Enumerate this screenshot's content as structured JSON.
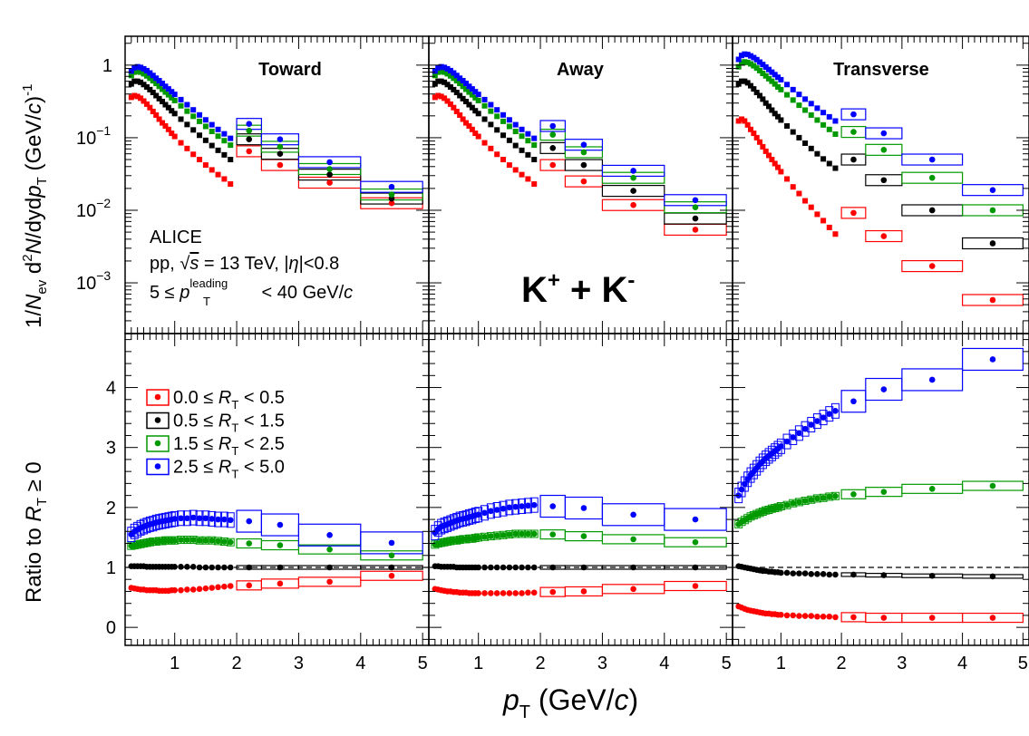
{
  "chart_data": {
    "type": "scatter",
    "experiment": "ALICE",
    "system_prefix": "pp, ",
    "sqrt_s_value": " = 13 TeV, |",
    "eta_sym": "η",
    "eta_cut": "|<0.8",
    "leading_prefix": "5 ≤ ",
    "leading_p": "p",
    "leading_sup": "leading",
    "leading_sub": "T",
    "leading_suffix": " < 40 GeV/",
    "c_sym": "c",
    "particle_label_a": "K",
    "particle_sup_a": "+",
    "particle_plus": " + K",
    "particle_sup_b": "-",
    "regions": [
      "Toward",
      "Away",
      "Transverse"
    ],
    "xlabel_p": "p",
    "xlabel_sub": "T",
    "xlabel_rest": " (GeV/",
    "xlabel_c": "c",
    "xlabel_close": ")",
    "ylabel_top_pre": "1/",
    "ylabel_top_N": "N",
    "ylabel_top_ev": "ev",
    "ylabel_top_d2": " d",
    "ylabel_top_2": "2",
    "ylabel_top_N2": "N",
    "ylabel_top_dy": "/dyd",
    "ylabel_top_p": "p",
    "ylabel_top_T": "T",
    "ylabel_top_units": " (GeV/",
    "ylabel_top_c": "c",
    "ylabel_top_exp": ")",
    "ylabel_top_m1": "-1",
    "ylabel_bot_pre": "Ratio to ",
    "ylabel_bot_R": "R",
    "ylabel_bot_T": "T",
    "ylabel_bot_post": " ≥ 0",
    "x_ticks": [
      "1",
      "2",
      "3",
      "4",
      "5"
    ],
    "xlim": [
      0.2,
      5.1
    ],
    "top_ylim": [
      0.0002,
      2.5
    ],
    "top_yscale": "log",
    "top_ytick_labels": [
      {
        "base": "1",
        "exp": ""
      },
      {
        "base": "10",
        "exp": "−1"
      },
      {
        "base": "10",
        "exp": "−2"
      },
      {
        "base": "10",
        "exp": "−3"
      }
    ],
    "bottom_ylim": [
      -0.3,
      4.9
    ],
    "bottom_yticks": [
      "0",
      "1",
      "2",
      "3",
      "4"
    ],
    "ratio_reference_line": 1,
    "legend_placement": "upper-left of bottom-left panel",
    "series": [
      {
        "name_pre": "0.0 ≤ ",
        "name_R": "R",
        "name_T": "T",
        "name_post": " < 0.5",
        "color": "#ff0000"
      },
      {
        "name_pre": "0.5 ≤ ",
        "name_R": "R",
        "name_T": "T",
        "name_post": " < 1.5",
        "color": "#000000"
      },
      {
        "name_pre": "1.5 ≤ ",
        "name_R": "R",
        "name_T": "T",
        "name_post": " < 2.5",
        "color": "#009900"
      },
      {
        "name_pre": "2.5 ≤ ",
        "name_R": "R",
        "name_T": "T",
        "name_post": " < 5.0",
        "color": "#0000ff"
      }
    ],
    "fine_pt": [
      0.3,
      0.35,
      0.4,
      0.45,
      0.5,
      0.55,
      0.6,
      0.65,
      0.7,
      0.75,
      0.8,
      0.85,
      0.9,
      0.95,
      1.0,
      1.1,
      1.2,
      1.3,
      1.4,
      1.5,
      1.6,
      1.7,
      1.8,
      1.9
    ],
    "coarse_pt": [
      2.2,
      2.7,
      3.5,
      4.5
    ],
    "coarse_halfwidth": [
      0.2,
      0.3,
      0.5,
      0.5
    ],
    "spectra": {
      "Toward": {
        "fine": [
          [
            0.36,
            0.38,
            0.37,
            0.35,
            0.32,
            0.29,
            0.26,
            0.23,
            0.205,
            0.18,
            0.16,
            0.145,
            0.13,
            0.115,
            0.104,
            0.085,
            0.071,
            0.059,
            0.05,
            0.042,
            0.036,
            0.031,
            0.027,
            0.023
          ],
          [
            0.55,
            0.6,
            0.6,
            0.58,
            0.54,
            0.5,
            0.46,
            0.42,
            0.38,
            0.345,
            0.315,
            0.285,
            0.26,
            0.235,
            0.215,
            0.18,
            0.152,
            0.128,
            0.108,
            0.092,
            0.078,
            0.067,
            0.058,
            0.05
          ],
          [
            0.72,
            0.8,
            0.82,
            0.8,
            0.76,
            0.71,
            0.66,
            0.61,
            0.56,
            0.51,
            0.465,
            0.425,
            0.39,
            0.355,
            0.325,
            0.275,
            0.232,
            0.197,
            0.168,
            0.143,
            0.122,
            0.105,
            0.091,
            0.079
          ],
          [
            0.83,
            0.92,
            0.95,
            0.93,
            0.89,
            0.84,
            0.78,
            0.72,
            0.66,
            0.61,
            0.56,
            0.51,
            0.47,
            0.43,
            0.395,
            0.335,
            0.285,
            0.242,
            0.206,
            0.176,
            0.151,
            0.13,
            0.113,
            0.098
          ]
        ],
        "coarse": [
          [
            0.065,
            0.042,
            0.024,
            0.0125
          ],
          [
            0.095,
            0.06,
            0.031,
            0.0145
          ],
          [
            0.125,
            0.075,
            0.037,
            0.0165
          ],
          [
            0.155,
            0.095,
            0.046,
            0.021
          ]
        ]
      },
      "Away": {
        "fine": [
          [
            0.36,
            0.38,
            0.37,
            0.35,
            0.32,
            0.29,
            0.26,
            0.23,
            0.205,
            0.18,
            0.16,
            0.145,
            0.13,
            0.115,
            0.104,
            0.085,
            0.071,
            0.059,
            0.05,
            0.042,
            0.036,
            0.031,
            0.027,
            0.023
          ],
          [
            0.55,
            0.6,
            0.6,
            0.58,
            0.54,
            0.5,
            0.46,
            0.42,
            0.38,
            0.345,
            0.315,
            0.285,
            0.26,
            0.235,
            0.215,
            0.18,
            0.152,
            0.128,
            0.108,
            0.092,
            0.078,
            0.067,
            0.058,
            0.05
          ],
          [
            0.72,
            0.8,
            0.82,
            0.8,
            0.76,
            0.71,
            0.66,
            0.61,
            0.56,
            0.51,
            0.465,
            0.425,
            0.39,
            0.355,
            0.325,
            0.275,
            0.232,
            0.197,
            0.168,
            0.143,
            0.122,
            0.105,
            0.091,
            0.079
          ],
          [
            0.83,
            0.92,
            0.95,
            0.93,
            0.89,
            0.84,
            0.78,
            0.72,
            0.66,
            0.61,
            0.56,
            0.51,
            0.47,
            0.43,
            0.395,
            0.335,
            0.285,
            0.242,
            0.206,
            0.176,
            0.151,
            0.13,
            0.113,
            0.098
          ]
        ],
        "coarse": [
          [
            0.042,
            0.025,
            0.0118,
            0.0054
          ],
          [
            0.072,
            0.042,
            0.0185,
            0.0077
          ],
          [
            0.11,
            0.063,
            0.028,
            0.011
          ],
          [
            0.145,
            0.08,
            0.035,
            0.0138
          ]
        ]
      },
      "Transverse": {
        "fine": [
          [
            0.17,
            0.18,
            0.17,
            0.15,
            0.13,
            0.115,
            0.1,
            0.087,
            0.075,
            0.065,
            0.057,
            0.05,
            0.044,
            0.039,
            0.034,
            0.027,
            0.021,
            0.017,
            0.0135,
            0.011,
            0.0088,
            0.0072,
            0.0058,
            0.0047
          ],
          [
            0.55,
            0.6,
            0.6,
            0.57,
            0.52,
            0.47,
            0.42,
            0.38,
            0.34,
            0.3,
            0.27,
            0.24,
            0.215,
            0.195,
            0.175,
            0.145,
            0.12,
            0.1,
            0.084,
            0.071,
            0.06,
            0.051,
            0.044,
            0.038
          ],
          [
            0.95,
            1.07,
            1.11,
            1.09,
            1.04,
            0.98,
            0.91,
            0.84,
            0.77,
            0.71,
            0.65,
            0.6,
            0.55,
            0.5,
            0.46,
            0.39,
            0.33,
            0.28,
            0.24,
            0.205,
            0.175,
            0.15,
            0.13,
            0.112
          ],
          [
            1.2,
            1.36,
            1.42,
            1.4,
            1.34,
            1.27,
            1.19,
            1.1,
            1.02,
            0.94,
            0.87,
            0.8,
            0.74,
            0.68,
            0.63,
            0.54,
            0.46,
            0.395,
            0.34,
            0.295,
            0.255,
            0.222,
            0.194,
            0.17
          ]
        ],
        "coarse": [
          [
            0.0092,
            0.0044,
            0.0017,
            0.00058
          ],
          [
            0.05,
            0.026,
            0.01,
            0.0035
          ],
          [
            0.12,
            0.068,
            0.028,
            0.01
          ],
          [
            0.21,
            0.115,
            0.05,
            0.019
          ]
        ]
      }
    },
    "ratios": {
      "Toward": {
        "fine": [
          [
            0.66,
            0.65,
            0.64,
            0.63,
            0.63,
            0.62,
            0.62,
            0.62,
            0.62,
            0.61,
            0.61,
            0.61,
            0.61,
            0.62,
            0.62,
            0.62,
            0.63,
            0.63,
            0.64,
            0.65,
            0.66,
            0.67,
            0.68,
            0.69
          ],
          [
            1.02,
            1.02,
            1.02,
            1.02,
            1.02,
            1.01,
            1.01,
            1.01,
            1.01,
            1.01,
            1.01,
            1.01,
            1.01,
            1.01,
            1.01,
            1.01,
            1.01,
            1.01,
            1.0,
            1.0,
            1.0,
            1.0,
            1.0,
            1.0
          ],
          [
            1.36,
            1.37,
            1.38,
            1.39,
            1.4,
            1.41,
            1.42,
            1.43,
            1.43,
            1.44,
            1.44,
            1.45,
            1.45,
            1.45,
            1.45,
            1.46,
            1.46,
            1.46,
            1.45,
            1.45,
            1.45,
            1.44,
            1.43,
            1.42
          ],
          [
            1.55,
            1.6,
            1.63,
            1.66,
            1.68,
            1.7,
            1.72,
            1.73,
            1.75,
            1.76,
            1.77,
            1.78,
            1.79,
            1.8,
            1.81,
            1.82,
            1.82,
            1.83,
            1.82,
            1.82,
            1.81,
            1.8,
            1.8,
            1.79
          ]
        ],
        "coarse": [
          [
            0.7,
            0.73,
            0.76,
            0.86
          ],
          [
            1.0,
            1.0,
            1.0,
            1.0
          ],
          [
            1.4,
            1.37,
            1.3,
            1.2
          ],
          [
            1.77,
            1.71,
            1.54,
            1.41
          ]
        ]
      },
      "Away": {
        "fine": [
          [
            0.64,
            0.63,
            0.62,
            0.61,
            0.6,
            0.6,
            0.59,
            0.59,
            0.58,
            0.58,
            0.58,
            0.57,
            0.57,
            0.57,
            0.57,
            0.57,
            0.57,
            0.57,
            0.57,
            0.57,
            0.57,
            0.57,
            0.58,
            0.58
          ],
          [
            1.02,
            1.02,
            1.01,
            1.01,
            1.01,
            1.01,
            1.01,
            1.0,
            1.0,
            1.0,
            1.0,
            1.0,
            1.0,
            1.0,
            1.0,
            1.0,
            1.0,
            1.0,
            1.0,
            1.0,
            1.0,
            1.0,
            1.0,
            1.0
          ],
          [
            1.38,
            1.4,
            1.41,
            1.42,
            1.43,
            1.44,
            1.45,
            1.45,
            1.46,
            1.47,
            1.47,
            1.48,
            1.48,
            1.49,
            1.5,
            1.51,
            1.52,
            1.53,
            1.54,
            1.55,
            1.56,
            1.56,
            1.56,
            1.56
          ],
          [
            1.58,
            1.64,
            1.68,
            1.7,
            1.72,
            1.74,
            1.76,
            1.78,
            1.8,
            1.81,
            1.82,
            1.84,
            1.85,
            1.87,
            1.88,
            1.91,
            1.94,
            1.96,
            1.98,
            2.0,
            2.01,
            2.02,
            2.03,
            2.04
          ]
        ],
        "coarse": [
          [
            0.59,
            0.6,
            0.64,
            0.69
          ],
          [
            1.0,
            1.0,
            1.0,
            1.0
          ],
          [
            1.55,
            1.52,
            1.47,
            1.42
          ],
          [
            2.02,
            1.99,
            1.88,
            1.8
          ]
        ]
      },
      "Transverse": {
        "fine": [
          [
            0.35,
            0.33,
            0.31,
            0.29,
            0.28,
            0.27,
            0.26,
            0.25,
            0.24,
            0.23,
            0.23,
            0.22,
            0.22,
            0.21,
            0.21,
            0.2,
            0.2,
            0.19,
            0.19,
            0.19,
            0.18,
            0.18,
            0.18,
            0.17
          ],
          [
            1.02,
            1.01,
            1.0,
            0.99,
            0.98,
            0.97,
            0.96,
            0.95,
            0.94,
            0.94,
            0.93,
            0.93,
            0.92,
            0.92,
            0.91,
            0.91,
            0.9,
            0.9,
            0.9,
            0.89,
            0.89,
            0.89,
            0.88,
            0.88
          ],
          [
            1.72,
            1.76,
            1.79,
            1.82,
            1.85,
            1.87,
            1.89,
            1.91,
            1.93,
            1.95,
            1.96,
            1.98,
            1.99,
            2.0,
            2.02,
            2.04,
            2.07,
            2.09,
            2.11,
            2.13,
            2.15,
            2.16,
            2.18,
            2.19
          ],
          [
            2.2,
            2.3,
            2.39,
            2.47,
            2.54,
            2.6,
            2.66,
            2.72,
            2.77,
            2.82,
            2.86,
            2.9,
            2.94,
            2.98,
            3.02,
            3.1,
            3.17,
            3.24,
            3.31,
            3.38,
            3.44,
            3.5,
            3.56,
            3.61
          ]
        ],
        "coarse": [
          [
            0.17,
            0.16,
            0.16,
            0.16
          ],
          [
            0.88,
            0.87,
            0.86,
            0.85
          ],
          [
            2.22,
            2.26,
            2.31,
            2.36
          ],
          [
            3.77,
            3.97,
            4.13,
            4.47
          ]
        ]
      }
    }
  }
}
